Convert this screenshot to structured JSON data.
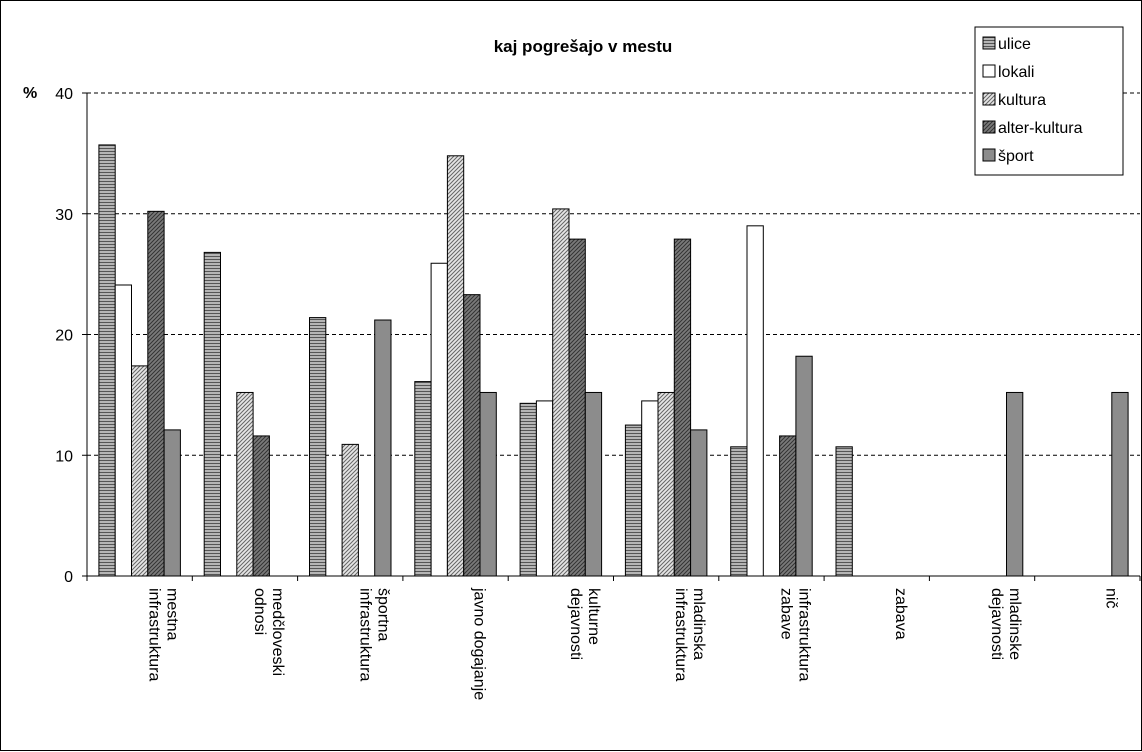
{
  "chart_data": {
    "type": "bar",
    "title": "kaj pogrešajo v mestu",
    "ylabel": "%",
    "xlabel": "",
    "ylim": [
      0,
      40
    ],
    "yticks": [
      0,
      10,
      20,
      30,
      40
    ],
    "grid": true,
    "legend_position": "top-right",
    "categories": [
      [
        "mestna",
        "infrastruktura"
      ],
      [
        "medčloveski",
        "odnosi"
      ],
      [
        "športna",
        "infrastruktura"
      ],
      [
        "javno dogajanje"
      ],
      [
        "kulturne",
        "dejavnosti"
      ],
      [
        "mladinska",
        "infrastruktura"
      ],
      [
        "infrastruktura",
        "zabave"
      ],
      [
        "zabava"
      ],
      [
        "mladinske",
        "dejavnosti"
      ],
      [
        "nič"
      ]
    ],
    "series": [
      {
        "name": "ulice",
        "pattern": "hstripe",
        "values": [
          35.7,
          26.8,
          21.4,
          16.1,
          14.3,
          12.5,
          10.7,
          10.7,
          0,
          0
        ]
      },
      {
        "name": "lokali",
        "pattern": "white",
        "values": [
          24.1,
          0,
          0,
          25.9,
          14.5,
          14.5,
          29.0,
          0,
          0,
          0
        ]
      },
      {
        "name": "kultura",
        "pattern": "diag",
        "values": [
          17.4,
          15.2,
          10.9,
          34.8,
          30.4,
          15.2,
          0,
          0,
          0,
          0
        ]
      },
      {
        "name": "alter-kultura",
        "pattern": "cross",
        "values": [
          30.2,
          11.6,
          0,
          23.3,
          27.9,
          27.9,
          11.6,
          0,
          0,
          0
        ]
      },
      {
        "name": "šport",
        "pattern": "gray",
        "values": [
          12.1,
          0,
          21.2,
          15.2,
          15.2,
          12.1,
          18.2,
          0,
          15.2,
          15.2
        ]
      }
    ]
  }
}
